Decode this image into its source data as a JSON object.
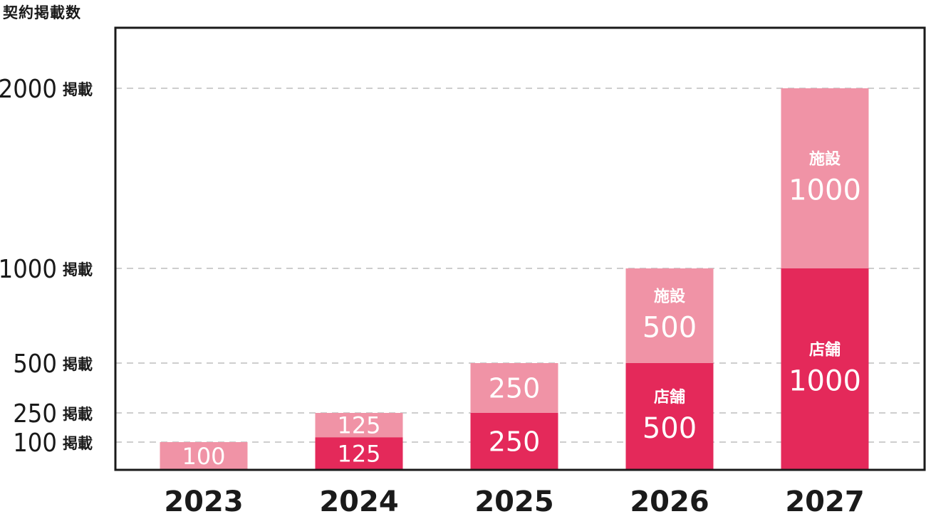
{
  "chart_data": {
    "type": "bar",
    "stacked": true,
    "ylabel": "契約掲載数",
    "categories": [
      "2023",
      "2024",
      "2025",
      "2026",
      "2027"
    ],
    "series": [
      {
        "name": "店舗",
        "values": [
          0,
          125,
          250,
          500,
          1000
        ],
        "color": "#e4295a"
      },
      {
        "name": "施設",
        "values": [
          100,
          125,
          250,
          500,
          1000
        ],
        "color": "#f093a6"
      }
    ],
    "value_labels": [
      {
        "series": 0,
        "category": 1,
        "text": "125"
      },
      {
        "series": 0,
        "category": 2,
        "text": "250"
      },
      {
        "series": 0,
        "category": 3,
        "text": "店舗\n500"
      },
      {
        "series": 0,
        "category": 4,
        "text": "店舗\n1000"
      },
      {
        "series": 1,
        "category": 0,
        "text": "100"
      },
      {
        "series": 1,
        "category": 1,
        "text": "125"
      },
      {
        "series": 1,
        "category": 2,
        "text": "250"
      },
      {
        "series": 1,
        "category": 3,
        "text": "施設\n500"
      },
      {
        "series": 1,
        "category": 4,
        "text": "施設\n1000"
      }
    ],
    "y_ticks": [
      {
        "value": 100,
        "label": "100",
        "unit": "掲載"
      },
      {
        "value": 250,
        "label": "250",
        "unit": "掲載"
      },
      {
        "value": 500,
        "label": "500",
        "unit": "掲載"
      },
      {
        "value": 1000,
        "label": "1000",
        "unit": "掲載"
      },
      {
        "value": 2000,
        "label": "2000",
        "unit": "掲載"
      }
    ],
    "grid": "dashed horizontal lines at tick values",
    "legend": "none"
  }
}
